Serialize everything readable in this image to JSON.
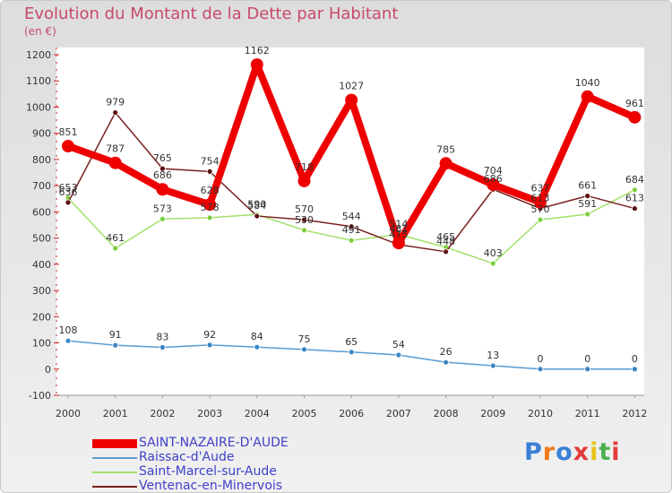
{
  "title": "Evolution du Montant de la Dette par Habitant",
  "unit": "(en €)",
  "logo": {
    "text": "Proxiti",
    "letters": [
      "P",
      "r",
      "o",
      "x",
      "i",
      "t",
      "i"
    ],
    "colors": [
      "#3a7fd5",
      "#f07a1a",
      "#3a7fd5",
      "#e33a3a",
      "#e8c21a",
      "#4cb050",
      "#e33a3a"
    ]
  },
  "chart_data": {
    "type": "line",
    "title": "Evolution du Montant de la Dette par Habitant",
    "ylabel": "(en €)",
    "xlabel": "",
    "ylim": [
      -100,
      1200
    ],
    "yticks": [
      -100,
      0,
      100,
      200,
      300,
      400,
      500,
      600,
      700,
      800,
      900,
      1000,
      1100,
      1200
    ],
    "grid": false,
    "legend_position": "bottom-left",
    "categories": [
      "2000",
      "2001",
      "2002",
      "2003",
      "2004",
      "2005",
      "2006",
      "2007",
      "2008",
      "2009",
      "2010",
      "2011",
      "2012"
    ],
    "series": [
      {
        "name": "SAINT-NAZAIRE-D'AUDE",
        "color": "#ee0000",
        "values": [
          851,
          787,
          686,
          628,
          1162,
          718,
          1027,
          481,
          785,
          704,
          637,
          1040,
          961
        ],
        "labels": [
          "851",
          "787",
          "686",
          "628",
          "1162",
          "718",
          "1027",
          "481",
          "785",
          "704",
          "637",
          "1040",
          "961"
        ]
      },
      {
        "name": "Raissac-d'Aude",
        "color": "#5a9bd0",
        "values": [
          108,
          91,
          83,
          92,
          84,
          75,
          65,
          54,
          26,
          13,
          0,
          0,
          0
        ],
        "labels": [
          "108",
          "91",
          "83",
          "92",
          "84",
          "75",
          "65",
          "54",
          "26",
          "13",
          "0",
          "0",
          "0"
        ]
      },
      {
        "name": "Saint-Marcel-sur-Aude",
        "color": "#a3e06a",
        "values": [
          653,
          461,
          573,
          578,
          590,
          530,
          491,
          514,
          465,
          403,
          570,
          591,
          684
        ],
        "labels": [
          "653",
          "461",
          "573",
          "578",
          "590",
          "530",
          "491",
          "514",
          "465",
          "403",
          "570",
          "591",
          "684"
        ]
      },
      {
        "name": "Ventenac-en-Minervois",
        "color": "#7a2020",
        "values": [
          636,
          979,
          765,
          754,
          584,
          570,
          544,
          475,
          448,
          686,
          613,
          661,
          613
        ],
        "labels": [
          "636",
          "979",
          "765",
          "754",
          "584",
          "570",
          "544",
          "475",
          "448",
          "686",
          "613",
          "661",
          "613"
        ]
      }
    ]
  }
}
